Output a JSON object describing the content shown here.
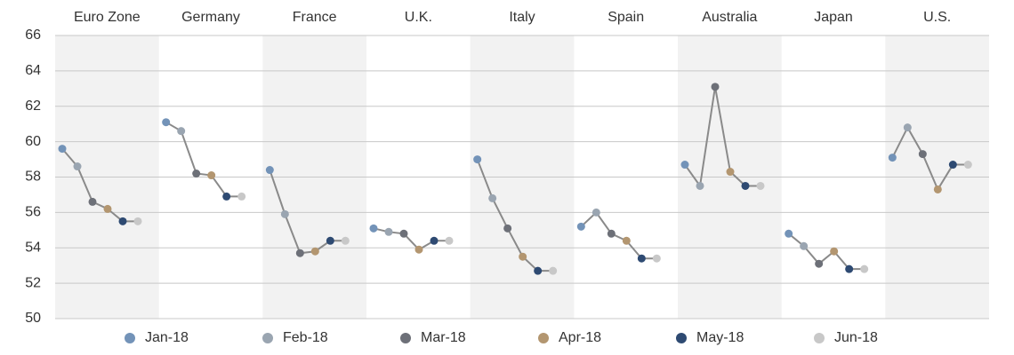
{
  "chart_data": {
    "type": "line",
    "categories": [
      "Euro Zone",
      "Germany",
      "France",
      "U.K.",
      "Italy",
      "Spain",
      "Australia",
      "Japan",
      "U.S."
    ],
    "series": [
      {
        "name": "Jan-18",
        "color": "#7393b8",
        "values": [
          59.6,
          61.1,
          58.4,
          55.1,
          59.0,
          55.2,
          58.7,
          54.8,
          59.1
        ]
      },
      {
        "name": "Feb-18",
        "color": "#9aa5b1",
        "values": [
          58.6,
          60.6,
          55.9,
          54.9,
          56.8,
          56.0,
          57.5,
          54.1,
          60.8
        ]
      },
      {
        "name": "Mar-18",
        "color": "#6d7078",
        "values": [
          56.6,
          58.2,
          53.7,
          54.8,
          55.1,
          54.8,
          63.1,
          53.1,
          59.3
        ]
      },
      {
        "name": "Apr-18",
        "color": "#b39670",
        "values": [
          56.2,
          58.1,
          53.8,
          53.9,
          53.5,
          54.4,
          58.3,
          53.8,
          57.3
        ]
      },
      {
        "name": "May-18",
        "color": "#2e4a72",
        "values": [
          55.5,
          56.9,
          54.4,
          54.4,
          52.7,
          53.4,
          57.5,
          52.8,
          58.7
        ]
      },
      {
        "name": "Jun-18",
        "color": "#c8c8c8",
        "values": [
          55.5,
          56.9,
          54.4,
          54.4,
          52.7,
          53.4,
          57.5,
          52.8,
          58.7
        ]
      }
    ],
    "ylim": [
      50,
      66
    ],
    "yticks": [
      50,
      52,
      54,
      56,
      58,
      60,
      62,
      64,
      66
    ],
    "grid": true
  }
}
